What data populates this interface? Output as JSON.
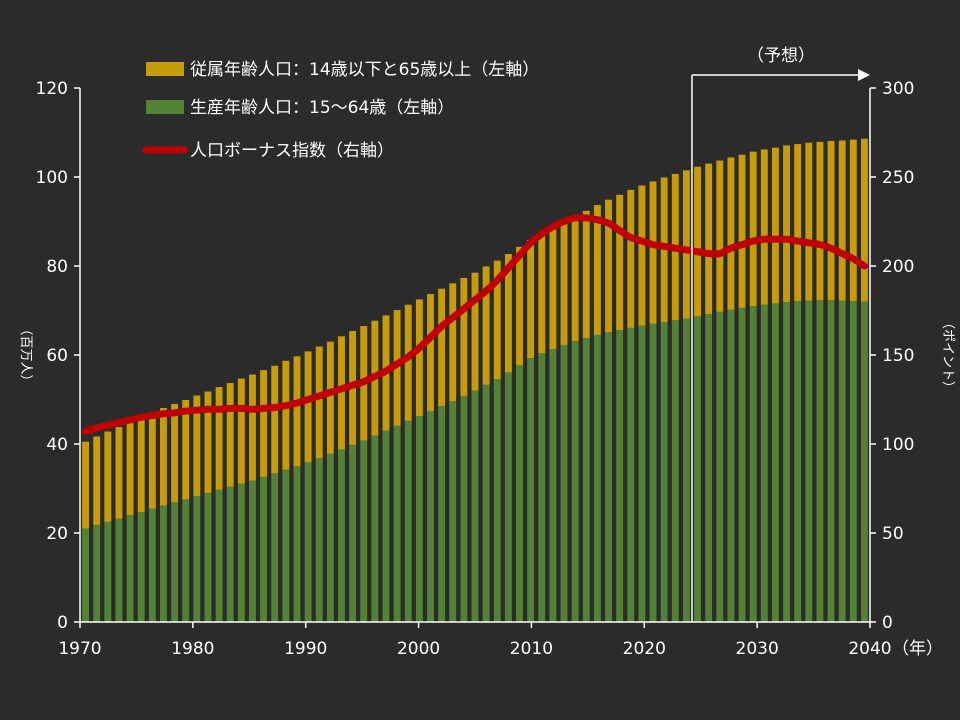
{
  "chart_data": {
    "type": "bar",
    "x": [
      1970,
      1971,
      1972,
      1973,
      1974,
      1975,
      1976,
      1977,
      1978,
      1979,
      1980,
      1981,
      1982,
      1983,
      1984,
      1985,
      1986,
      1987,
      1988,
      1989,
      1990,
      1991,
      1992,
      1993,
      1994,
      1995,
      1996,
      1997,
      1998,
      1999,
      2000,
      2001,
      2002,
      2003,
      2004,
      2005,
      2006,
      2007,
      2008,
      2009,
      2010,
      2011,
      2012,
      2013,
      2014,
      2015,
      2016,
      2017,
      2018,
      2019,
      2020,
      2021,
      2022,
      2023,
      2024,
      2025,
      2026,
      2027,
      2028,
      2029,
      2030,
      2031,
      2032,
      2033,
      2034,
      2035,
      2036,
      2037,
      2038,
      2039,
      2040
    ],
    "series": [
      {
        "name": "生産年齢人口：15～64歳（左軸）",
        "color": "#548235",
        "axis": "left",
        "values": [
          21.0,
          21.8,
          22.5,
          23.2,
          24.0,
          24.7,
          25.5,
          26.2,
          26.9,
          27.6,
          28.3,
          29.0,
          29.7,
          30.4,
          31.1,
          31.8,
          32.6,
          33.4,
          34.2,
          35.0,
          35.9,
          36.8,
          37.8,
          38.8,
          39.8,
          40.8,
          41.9,
          43.0,
          44.1,
          45.2,
          46.3,
          47.4,
          48.5,
          49.6,
          50.8,
          52.0,
          53.3,
          54.6,
          56.1,
          57.7,
          59.3,
          60.4,
          61.3,
          62.2,
          63.1,
          63.8,
          64.5,
          65.1,
          65.6,
          66.1,
          66.6,
          67.0,
          67.4,
          67.8,
          68.2,
          68.7,
          69.2,
          69.7,
          70.2,
          70.6,
          71.0,
          71.3,
          71.6,
          71.9,
          72.1,
          72.2,
          72.3,
          72.3,
          72.2,
          72.1,
          72.0
        ]
      },
      {
        "name": "従属年齢人口：14歳以下と65歳以上（左軸）",
        "color": "#c69c0a",
        "axis": "left",
        "values": [
          19.5,
          19.9,
          20.3,
          20.6,
          21.0,
          21.3,
          21.6,
          21.9,
          22.1,
          22.3,
          22.6,
          22.8,
          23.1,
          23.3,
          23.6,
          23.8,
          24.0,
          24.2,
          24.5,
          24.7,
          24.9,
          25.1,
          25.2,
          25.4,
          25.6,
          25.7,
          25.8,
          25.9,
          26.0,
          26.1,
          26.2,
          26.3,
          26.4,
          26.5,
          26.5,
          26.5,
          26.6,
          26.6,
          26.6,
          26.6,
          26.6,
          26.8,
          27.2,
          27.6,
          28.0,
          28.6,
          29.2,
          29.8,
          30.4,
          31.0,
          31.5,
          32.0,
          32.5,
          32.9,
          33.3,
          33.6,
          33.8,
          34.0,
          34.2,
          34.4,
          34.7,
          34.9,
          35.0,
          35.2,
          35.3,
          35.5,
          35.6,
          35.8,
          36.0,
          36.3,
          36.6
        ]
      },
      {
        "name": "人口ボーナス指数（右軸）",
        "color": "#c00000",
        "axis": "right",
        "type": "line",
        "values": [
          107,
          109,
          110.5,
          112,
          113.5,
          115,
          116,
          117,
          117.5,
          118.5,
          119,
          119.5,
          119.5,
          120,
          120,
          119.5,
          120,
          120.5,
          121.5,
          123,
          125,
          127,
          129,
          131,
          133,
          135,
          138,
          141,
          145,
          149,
          154,
          160,
          166,
          171,
          176,
          181,
          186,
          192,
          199,
          206,
          213,
          218,
          222,
          225,
          227,
          227,
          226,
          224,
          220,
          216,
          214,
          212,
          211,
          210,
          209,
          208,
          207,
          207,
          210,
          212,
          214,
          215,
          215,
          215,
          214,
          213,
          212,
          210,
          207,
          204,
          200
        ]
      }
    ],
    "title": "",
    "xlabel": "（年）",
    "ylabel_left": "（百万人）",
    "ylabel_right": "（ポイント）",
    "ylim_left": [
      0,
      120
    ],
    "ylim_right": [
      0,
      300
    ],
    "yticks_left": [
      "0",
      "20",
      "40",
      "60",
      "80",
      "100",
      "120"
    ],
    "yticks_right": [
      "0",
      "50",
      "100",
      "150",
      "200",
      "250",
      "300"
    ],
    "xticks": [
      "1970",
      "1980",
      "1990",
      "2000",
      "2010",
      "2020",
      "2030",
      "2040"
    ],
    "forecast_start": 2025,
    "forecast_label": "（予想）",
    "grid": false,
    "stacked": true,
    "legend_position": "top-left",
    "legend": [
      {
        "label": "従属年齢人口：14歳以下と65歳以上（左軸）",
        "color": "#c69c0a",
        "kind": "box"
      },
      {
        "label": "生産年齢人口：15～64歳（左軸）",
        "color": "#548235",
        "kind": "box"
      },
      {
        "label": "人口ボーナス指数（右軸）",
        "color": "#c00000",
        "kind": "line"
      }
    ]
  }
}
